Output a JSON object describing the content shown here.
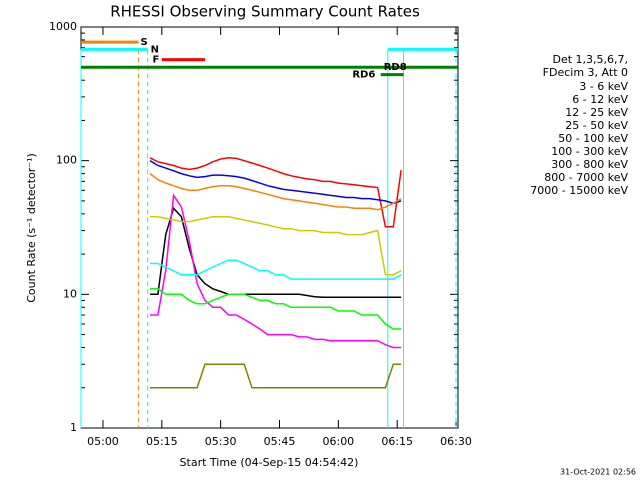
{
  "chart_data": {
    "type": "line",
    "title": "RHESSI Observing Summary Count Rates",
    "xlabel": "Start Time (04-Sep-15 04:54:42)",
    "ylabel": "Count Rate (s⁻¹ detector⁻¹)",
    "footer": "31-Oct-2021 02:56",
    "legend_header": [
      "Det 1,3,5,6,7,",
      "FDecim 3, Att 0"
    ],
    "log_y": true,
    "xlim": [
      294.4,
      390.5
    ],
    "xticks": [
      {
        "value": 300,
        "label": "05:00"
      },
      {
        "value": 315,
        "label": "05:15"
      },
      {
        "value": 330,
        "label": "05:30"
      },
      {
        "value": 345,
        "label": "05:45"
      },
      {
        "value": 360,
        "label": "06:00"
      },
      {
        "value": 375,
        "label": "06:15"
      },
      {
        "value": 390,
        "label": "06:30"
      }
    ],
    "ylim": [
      1,
      1000
    ],
    "yticks": [
      1,
      10,
      100,
      1000
    ],
    "x": [
      312,
      314,
      316,
      318,
      320,
      322,
      324,
      326,
      328,
      330,
      332,
      334,
      336,
      338,
      340,
      342,
      344,
      346,
      348,
      350,
      352,
      354,
      356,
      358,
      360,
      362,
      364,
      366,
      368,
      370,
      372,
      374,
      376
    ],
    "series": [
      {
        "name": "3 - 6 keV",
        "color": "#000000",
        "values": [
          10,
          10,
          28,
          44,
          38,
          22,
          14,
          12,
          11,
          10.5,
          10,
          10,
          10,
          10,
          10,
          10,
          10,
          10,
          10,
          10,
          9.8,
          9.6,
          9.5,
          9.5,
          9.5,
          9.5,
          9.5,
          9.5,
          9.5,
          9.5,
          9.5,
          9.5,
          9.5
        ]
      },
      {
        "name": "6 - 12 keV",
        "color": "#ff00ff",
        "values": [
          7,
          7,
          15,
          55,
          45,
          25,
          12,
          9,
          8,
          8,
          7,
          7,
          6.5,
          6,
          5.5,
          5,
          5,
          5,
          5,
          4.8,
          4.8,
          4.6,
          4.6,
          4.5,
          4.5,
          4.5,
          4.5,
          4.5,
          4.5,
          4.5,
          4.2,
          4,
          4
        ]
      },
      {
        "name": "12 - 25 keV",
        "color": "#00ff00",
        "values": [
          11,
          11,
          10,
          10,
          10,
          9,
          8.5,
          8.5,
          9,
          9.5,
          10,
          10,
          10,
          9.5,
          9,
          9,
          8.5,
          8.5,
          8,
          8,
          8,
          8,
          8,
          8,
          7.5,
          7.5,
          7.5,
          7,
          7,
          7,
          6,
          5.5,
          5.5
        ]
      },
      {
        "name": "25 - 50 keV",
        "color": "#00ffff",
        "values": [
          17,
          17,
          16,
          15,
          14,
          14,
          14,
          15,
          16,
          17,
          18,
          18,
          17,
          16,
          15,
          15,
          14,
          14,
          13,
          13,
          13,
          13,
          13,
          13,
          13,
          13,
          13,
          13,
          13,
          13,
          13,
          13,
          14
        ]
      },
      {
        "name": "50 - 100 keV",
        "color": "#cccc00",
        "values": [
          38,
          38,
          37,
          36,
          35,
          35,
          36,
          37,
          38,
          38,
          38,
          37,
          36,
          35,
          34,
          33,
          32,
          31,
          31,
          30,
          30,
          30,
          29,
          29,
          29,
          28,
          28,
          28,
          29,
          30,
          14,
          14,
          15
        ]
      },
      {
        "name": "100 - 300 keV",
        "color": "#ff0000",
        "values": [
          105,
          98,
          95,
          92,
          88,
          86,
          88,
          92,
          98,
          103,
          105,
          104,
          100,
          96,
          92,
          88,
          84,
          80,
          77,
          75,
          73,
          72,
          70,
          70,
          68,
          67,
          66,
          65,
          64,
          63,
          32,
          32,
          85
        ]
      },
      {
        "name": "300 - 800 keV",
        "color": "#0000ff",
        "values": [
          100,
          92,
          88,
          84,
          80,
          77,
          75,
          76,
          78,
          78,
          77,
          76,
          74,
          71,
          68,
          65,
          63,
          61,
          60,
          59,
          58,
          57,
          56,
          55,
          54,
          53,
          53,
          52,
          52,
          51,
          50,
          48,
          50
        ]
      },
      {
        "name": "800 - 7000 keV",
        "color": "#ff8000",
        "values": [
          80,
          72,
          68,
          65,
          62,
          60,
          60,
          62,
          64,
          65,
          65,
          64,
          62,
          60,
          58,
          56,
          54,
          52,
          51,
          50,
          49,
          48,
          47,
          46,
          45,
          45,
          44,
          44,
          44,
          43,
          45,
          48,
          52
        ]
      },
      {
        "name": "7000 - 15000 keV",
        "color": "#808000",
        "values": [
          2,
          2,
          2,
          2,
          2,
          2,
          2,
          3,
          3,
          3,
          3,
          3,
          3,
          2,
          2,
          2,
          2,
          2,
          2,
          2,
          2,
          2,
          2,
          2,
          2,
          2,
          2,
          2,
          2,
          2,
          2,
          3,
          3
        ]
      }
    ],
    "flags": [
      {
        "label": "S",
        "color": "#ff8000",
        "level": 770,
        "segments": [
          [
            294.4,
            309.1
          ]
        ],
        "label_x": 310.5
      },
      {
        "label": "N",
        "color": "#00ffff",
        "level": 680,
        "segments": [
          [
            294.4,
            311.4
          ],
          [
            372.6,
            390.5
          ]
        ],
        "label_x": 313.2
      },
      {
        "label": "F",
        "color": "#ff0000",
        "level": 570,
        "segments": [
          [
            315,
            326
          ]
        ],
        "label_x": 313.5
      },
      {
        "label": "RD8",
        "color": "#008000",
        "level": 500,
        "segments": [
          [
            294.4,
            390.5
          ]
        ],
        "label_x": 374.5
      },
      {
        "label": "RD6",
        "color": "#008000",
        "level": 440,
        "segments": [
          [
            370.8,
            376.6
          ]
        ],
        "label_x": 366.5
      }
    ],
    "vlines": [
      {
        "x": 294.4,
        "color": "#00ffff",
        "dashed": false
      },
      {
        "x": 309.1,
        "color": "#ff8000",
        "dashed": true
      },
      {
        "x": 311.4,
        "color": "#00ffff",
        "dashed": true
      },
      {
        "x": 372.6,
        "color": "#00ffff",
        "dashed": false
      },
      {
        "x": 376.6,
        "color": "#00ffff",
        "dashed": false
      },
      {
        "x": 390.0,
        "color": "#00ffff",
        "dashed": true
      }
    ]
  }
}
